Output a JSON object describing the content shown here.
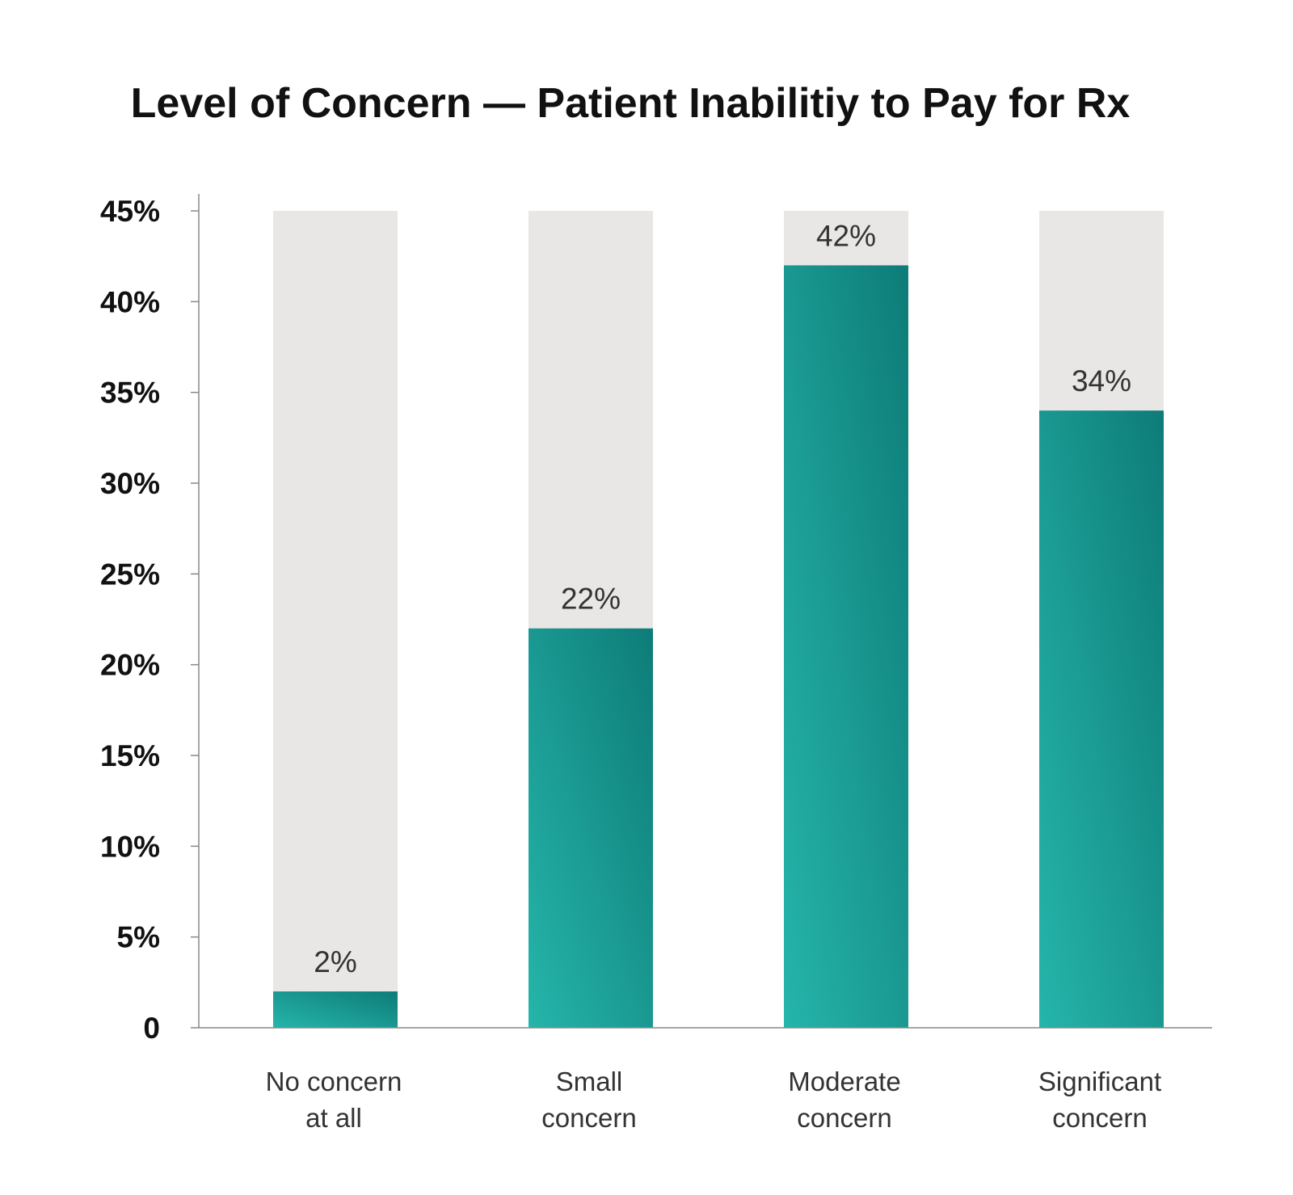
{
  "chart_data": {
    "type": "bar",
    "title": "Level of Concern — Patient Inabilitiy to Pay for Rx",
    "xlabel": "",
    "ylabel": "",
    "categories": [
      [
        "No concern",
        "at all"
      ],
      [
        "Small",
        "concern"
      ],
      [
        "Moderate",
        "concern"
      ],
      [
        "Significant",
        "concern"
      ]
    ],
    "values": [
      2,
      22,
      42,
      34
    ],
    "value_labels": [
      "2%",
      "22%",
      "42%",
      "34%"
    ],
    "ylim": [
      0,
      45
    ],
    "yticks": [
      0,
      5,
      10,
      15,
      20,
      25,
      30,
      35,
      40,
      45
    ],
    "ytick_labels": [
      "0",
      "5%",
      "10%",
      "15%",
      "20%",
      "25%",
      "30%",
      "35%",
      "40%",
      "45%"
    ],
    "grid": false,
    "background_bars": true,
    "colors": {
      "bar_light": "#25b5aa",
      "bar_dark": "#0e7c78",
      "background_bar": "#e8e7e6",
      "axis": "#888888"
    }
  }
}
